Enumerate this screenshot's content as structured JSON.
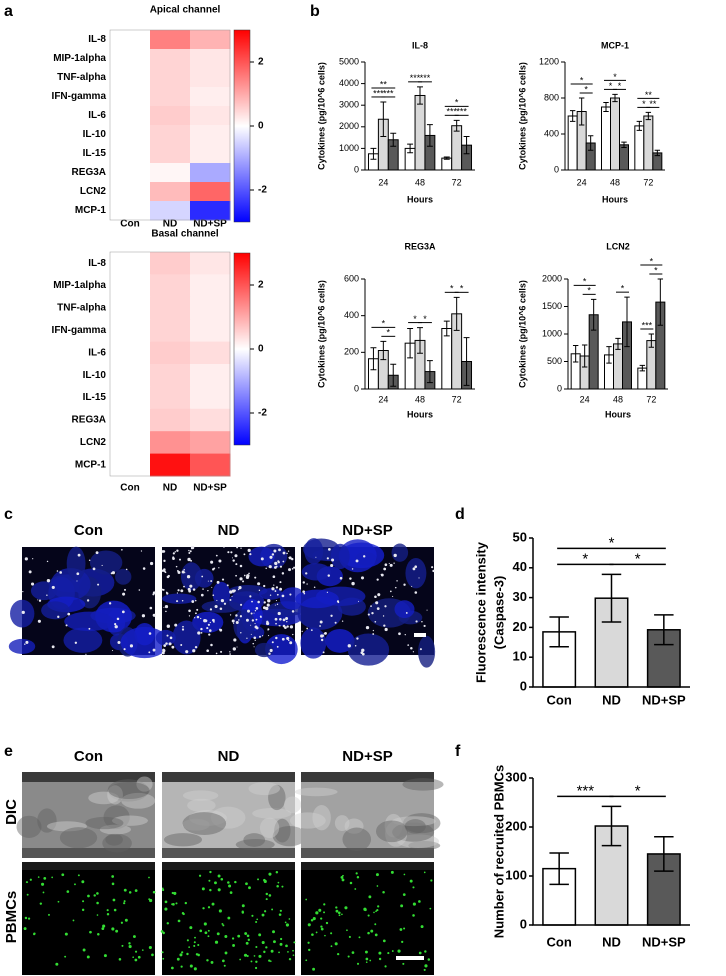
{
  "figure": {
    "panel_labels": [
      "a",
      "b",
      "c",
      "d",
      "e",
      "f"
    ],
    "c": {
      "columns": [
        "Con",
        "ND",
        "ND+SP"
      ]
    },
    "e": {
      "columns": [
        "Con",
        "ND",
        "ND+SP"
      ],
      "rows": [
        "DIC",
        "PBMCs"
      ]
    }
  },
  "chart_data": [
    {
      "type": "heatmap",
      "title": "Apical channel",
      "rows": [
        "IL-8",
        "MIP-1alpha",
        "TNF-alpha",
        "IFN-gamma",
        "IL-6",
        "IL-10",
        "IL-15",
        "REG3A",
        "LCN2",
        "MCP-1"
      ],
      "columns": [
        "Con",
        "ND",
        "ND+SP"
      ],
      "values": [
        [
          0,
          1.5,
          0.9
        ],
        [
          0,
          0.5,
          0.3
        ],
        [
          0,
          0.5,
          0.3
        ],
        [
          0,
          0.5,
          0.2
        ],
        [
          0,
          0.6,
          0.3
        ],
        [
          0,
          0.5,
          0.2
        ],
        [
          0,
          0.5,
          0.2
        ],
        [
          0,
          0.1,
          -1.0
        ],
        [
          0,
          0.8,
          1.8
        ],
        [
          0,
          -0.5,
          -2.5
        ]
      ],
      "clim": [
        -3,
        3
      ],
      "cticks": [
        2,
        0,
        -2
      ],
      "colors": [
        "#0000ff",
        "#ffffff",
        "#ff0000"
      ]
    },
    {
      "type": "heatmap",
      "title": "Basal channel",
      "rows": [
        "IL-8",
        "MIP-1alpha",
        "TNF-alpha",
        "IFN-gamma",
        "IL-6",
        "IL-10",
        "IL-15",
        "REG3A",
        "LCN2",
        "MCP-1"
      ],
      "columns": [
        "Con",
        "ND",
        "ND+SP"
      ],
      "values": [
        [
          0,
          0.6,
          0.3
        ],
        [
          0,
          0.5,
          0.2
        ],
        [
          0,
          0.5,
          0.2
        ],
        [
          0,
          0.5,
          0.2
        ],
        [
          0,
          0.6,
          0.4
        ],
        [
          0,
          0.5,
          0.2
        ],
        [
          0,
          0.5,
          0.2
        ],
        [
          0,
          0.6,
          0.4
        ],
        [
          0,
          1.3,
          1.1
        ],
        [
          0,
          2.8,
          2.0
        ]
      ],
      "clim": [
        -3,
        3
      ],
      "cticks": [
        2,
        0,
        -2
      ],
      "colors": [
        "#0000ff",
        "#ffffff",
        "#ff0000"
      ]
    },
    {
      "type": "bar",
      "title": "IL-8",
      "ylabel": [
        "Cytokines (pg/10^6 cells)"
      ],
      "xlabel": "Hours",
      "categories": [
        "24",
        "48",
        "72"
      ],
      "series": [
        {
          "color": "#ffffff",
          "values": [
            750,
            1000,
            550
          ],
          "errors": [
            250,
            200,
            50
          ]
        },
        {
          "color": "#d9d9d9",
          "values": [
            2350,
            3450,
            2050
          ],
          "errors": [
            800,
            400,
            250
          ]
        },
        {
          "color": "#595959",
          "values": [
            1400,
            1600,
            1150
          ],
          "errors": [
            300,
            500,
            400
          ]
        }
      ],
      "ylim": [
        0,
        5000
      ],
      "yticks": [
        0,
        1000,
        2000,
        3000,
        4000,
        5000
      ],
      "annotations": [
        "**",
        "***",
        "***",
        "***",
        "***",
        "*",
        "***",
        "***"
      ]
    },
    {
      "type": "bar",
      "title": "MCP-1",
      "ylabel": [
        "Cytokines (pg/10^6 cells)"
      ],
      "xlabel": "Hours",
      "categories": [
        "24",
        "48",
        "72"
      ],
      "series": [
        {
          "color": "#ffffff",
          "values": [
            600,
            700,
            490
          ],
          "errors": [
            60,
            50,
            50
          ]
        },
        {
          "color": "#d9d9d9",
          "values": [
            650,
            800,
            600
          ],
          "errors": [
            150,
            40,
            40
          ]
        },
        {
          "color": "#595959",
          "values": [
            300,
            280,
            190
          ],
          "errors": [
            80,
            30,
            30
          ]
        }
      ],
      "ylim": [
        0,
        1200
      ],
      "yticks": [
        0,
        400,
        800,
        1200
      ],
      "annotations": [
        "*",
        "*",
        "*",
        "*",
        "*",
        "**",
        "*",
        "**"
      ]
    },
    {
      "type": "bar",
      "title": "REG3A",
      "ylabel": [
        "Cytokines (pg/10^6 cells)"
      ],
      "xlabel": "Hours",
      "categories": [
        "24",
        "48",
        "72"
      ],
      "series": [
        {
          "color": "#ffffff",
          "values": [
            165,
            250,
            330
          ],
          "errors": [
            60,
            80,
            40
          ]
        },
        {
          "color": "#d9d9d9",
          "values": [
            210,
            265,
            410
          ],
          "errors": [
            50,
            70,
            90
          ]
        },
        {
          "color": "#595959",
          "values": [
            75,
            95,
            150
          ],
          "errors": [
            60,
            60,
            130
          ]
        }
      ],
      "ylim": [
        0,
        600
      ],
      "yticks": [
        0,
        200,
        400,
        600
      ],
      "annotations": [
        "*",
        "*",
        "*",
        "*",
        "*",
        "*"
      ]
    },
    {
      "type": "bar",
      "title": "LCN2",
      "ylabel": [
        "Cytokines (pg/10^6 cells)"
      ],
      "xlabel": "Hours",
      "categories": [
        "24",
        "48",
        "72"
      ],
      "series": [
        {
          "color": "#ffffff",
          "values": [
            640,
            620,
            380
          ],
          "errors": [
            150,
            150,
            50
          ]
        },
        {
          "color": "#d9d9d9",
          "values": [
            600,
            820,
            880
          ],
          "errors": [
            200,
            100,
            120
          ]
        },
        {
          "color": "#595959",
          "values": [
            1350,
            1220,
            1580
          ],
          "errors": [
            280,
            450,
            420
          ]
        }
      ],
      "ylim": [
        0,
        2000
      ],
      "yticks": [
        0,
        500,
        1000,
        1500,
        2000
      ],
      "annotations": [
        "*",
        "*",
        "*",
        "*",
        "*",
        "***"
      ]
    },
    {
      "type": "bar",
      "ylabel": [
        "Fluorescence intensity",
        "(Caspase-3)"
      ],
      "categories": [
        "Con",
        "ND",
        "ND+SP"
      ],
      "values": [
        18.5,
        29.8,
        19.2
      ],
      "errors": [
        5,
        8,
        5
      ],
      "colors": [
        "#ffffff",
        "#d9d9d9",
        "#595959"
      ],
      "ylim": [
        0,
        50
      ],
      "yticks": [
        0,
        10,
        20,
        30,
        40,
        50
      ],
      "annotations": [
        "*",
        "*",
        "*"
      ]
    },
    {
      "type": "bar",
      "ylabel": [
        "Number of recruited PBMCs"
      ],
      "categories": [
        "Con",
        "ND",
        "ND+SP"
      ],
      "values": [
        115,
        202,
        145
      ],
      "errors": [
        32,
        40,
        35
      ],
      "colors": [
        "#ffffff",
        "#d9d9d9",
        "#595959"
      ],
      "ylim": [
        0,
        300
      ],
      "yticks": [
        0,
        100,
        200,
        300
      ],
      "annotations": [
        "***",
        "*"
      ]
    }
  ]
}
